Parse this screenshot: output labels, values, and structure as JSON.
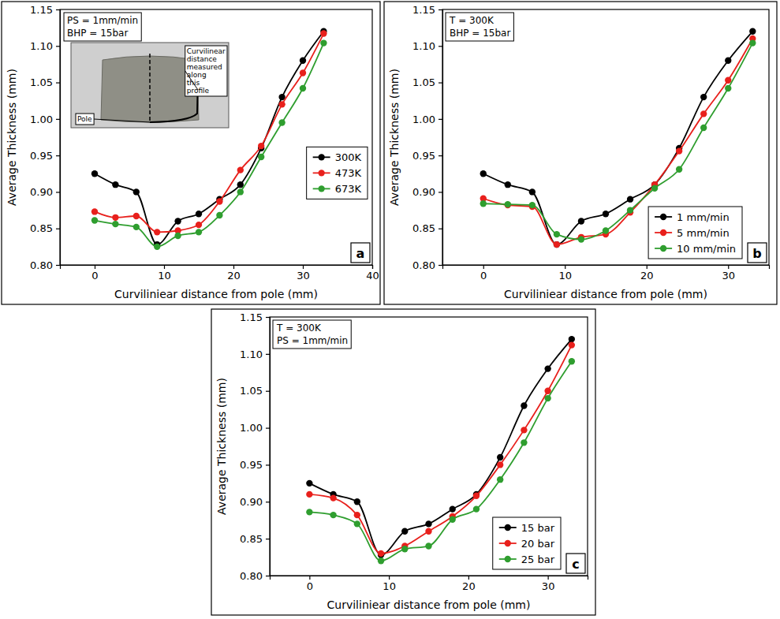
{
  "chart_data": [
    {
      "type": "line",
      "panel_label": "a",
      "annotations": [
        "PS = 1mm/min",
        "BHP = 15bar"
      ],
      "inset_labels": [
        "Curvilinear distance measured along this profile",
        "Pole"
      ],
      "x_label": "Curviliniear distance from pole (mm)",
      "y_label": "Average Thickness (mm)",
      "x": [
        0,
        3,
        6,
        9,
        12,
        15,
        18,
        21,
        24,
        27,
        30,
        33
      ],
      "xlim": [
        -5,
        40
      ],
      "xticks": [
        0,
        10,
        20,
        30,
        40
      ],
      "ylim": [
        0.8,
        1.15
      ],
      "yticks": [
        {
          "value": 0.8,
          "label": "0.80"
        },
        {
          "value": 0.85,
          "label": "0.85"
        },
        {
          "value": 0.9,
          "label": "0.90"
        },
        {
          "value": 0.95,
          "label": "0.95"
        },
        {
          "value": 1.0,
          "label": "1.00"
        },
        {
          "value": 1.05,
          "label": "1.05"
        },
        {
          "value": 1.1,
          "label": "1.10"
        },
        {
          "value": 1.15,
          "label": "1.15"
        }
      ],
      "grid": false,
      "legend": "center right",
      "marker": "circle",
      "line_style": "solid",
      "series": [
        {
          "name": "300K",
          "color": "#000000",
          "values": [
            0.925,
            0.91,
            0.9,
            0.828,
            0.86,
            0.87,
            0.89,
            0.91,
            0.96,
            1.03,
            1.08,
            1.12
          ]
        },
        {
          "name": "473K",
          "color": "#e8201c",
          "values": [
            0.873,
            0.865,
            0.867,
            0.845,
            0.847,
            0.855,
            0.887,
            0.93,
            0.963,
            1.02,
            1.063,
            1.117
          ]
        },
        {
          "name": "673K",
          "color": "#2f9e2f",
          "values": [
            0.861,
            0.856,
            0.852,
            0.825,
            0.84,
            0.845,
            0.868,
            0.9,
            0.948,
            0.995,
            1.042,
            1.104
          ]
        }
      ]
    },
    {
      "type": "line",
      "panel_label": "b",
      "annotations": [
        "T = 300K",
        "BHP = 15bar"
      ],
      "x_label": "Curviliniear distance from pole (mm)",
      "y_label": "Average Thickness (mm)",
      "x": [
        0,
        3,
        6,
        9,
        12,
        15,
        18,
        21,
        24,
        27,
        30,
        33
      ],
      "xlim": [
        -5,
        35
      ],
      "xticks": [
        0,
        10,
        20,
        30
      ],
      "ylim": [
        0.8,
        1.15
      ],
      "yticks": [
        {
          "value": 0.8,
          "label": "0.80"
        },
        {
          "value": 0.85,
          "label": "0.85"
        },
        {
          "value": 0.9,
          "label": "0.90"
        },
        {
          "value": 0.95,
          "label": "0.95"
        },
        {
          "value": 1.0,
          "label": "1.00"
        },
        {
          "value": 1.05,
          "label": "1.05"
        },
        {
          "value": 1.1,
          "label": "1.10"
        },
        {
          "value": 1.15,
          "label": "1.15"
        }
      ],
      "grid": false,
      "legend": "lower right",
      "marker": "circle",
      "line_style": "solid",
      "series": [
        {
          "name": "1 mm/min",
          "color": "#000000",
          "values": [
            0.925,
            0.91,
            0.9,
            0.828,
            0.86,
            0.87,
            0.89,
            0.91,
            0.96,
            1.03,
            1.08,
            1.12
          ]
        },
        {
          "name": "5 mm/min",
          "color": "#e8201c",
          "values": [
            0.891,
            0.882,
            0.88,
            0.828,
            0.838,
            0.842,
            0.872,
            0.91,
            0.956,
            1.007,
            1.053,
            1.11
          ]
        },
        {
          "name": "10 mm/min",
          "color": "#2f9e2f",
          "values": [
            0.884,
            0.883,
            0.882,
            0.842,
            0.835,
            0.847,
            0.875,
            0.905,
            0.931,
            0.988,
            1.042,
            1.104
          ]
        }
      ]
    },
    {
      "type": "line",
      "panel_label": "c",
      "annotations": [
        "T = 300K",
        "PS = 1mm/min"
      ],
      "x_label": "Curviliniear distance from pole (mm)",
      "y_label": "Average Thickness (mm)",
      "x": [
        0,
        3,
        6,
        9,
        12,
        15,
        18,
        21,
        24,
        27,
        30,
        33
      ],
      "xlim": [
        -5,
        35
      ],
      "xticks": [
        0,
        10,
        20,
        30
      ],
      "ylim": [
        0.8,
        1.15
      ],
      "yticks": [
        {
          "value": 0.8,
          "label": "0.80"
        },
        {
          "value": 0.85,
          "label": "0.85"
        },
        {
          "value": 0.9,
          "label": "0.90"
        },
        {
          "value": 0.95,
          "label": "0.95"
        },
        {
          "value": 1.0,
          "label": "1.00"
        },
        {
          "value": 1.05,
          "label": "1.05"
        },
        {
          "value": 1.1,
          "label": "1.10"
        },
        {
          "value": 1.15,
          "label": "1.15"
        }
      ],
      "grid": false,
      "legend": "lower right",
      "marker": "circle",
      "line_style": "solid",
      "series": [
        {
          "name": "15 bar",
          "color": "#000000",
          "values": [
            0.925,
            0.91,
            0.9,
            0.828,
            0.86,
            0.87,
            0.89,
            0.91,
            0.96,
            1.03,
            1.08,
            1.12
          ]
        },
        {
          "name": "20 bar",
          "color": "#e8201c",
          "values": [
            0.91,
            0.905,
            0.882,
            0.83,
            0.84,
            0.86,
            0.88,
            0.908,
            0.95,
            0.997,
            1.05,
            1.112
          ]
        },
        {
          "name": "25 bar",
          "color": "#2f9e2f",
          "values": [
            0.886,
            0.882,
            0.87,
            0.82,
            0.836,
            0.84,
            0.876,
            0.89,
            0.93,
            0.98,
            1.04,
            1.09
          ]
        }
      ]
    }
  ]
}
